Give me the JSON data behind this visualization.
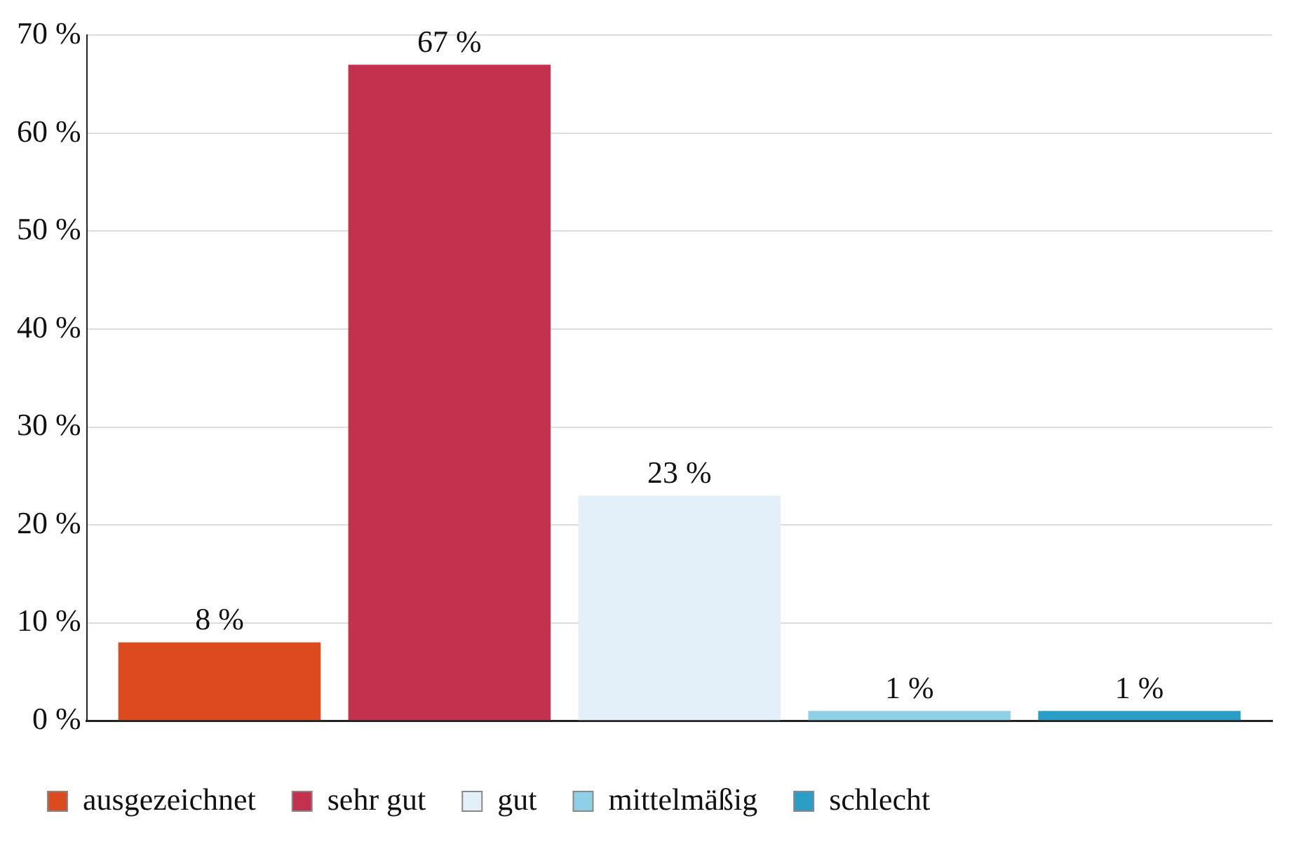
{
  "chart_data": {
    "type": "bar",
    "categories": [
      null
    ],
    "series": [
      {
        "name": "ausgezeichnet",
        "color": "#dc4a20",
        "values": [
          8
        ],
        "value_labels": [
          "8 %"
        ]
      },
      {
        "name": "sehr gut",
        "color": "#c3314f",
        "values": [
          67
        ],
        "value_labels": [
          "67 %"
        ]
      },
      {
        "name": "gut",
        "color": "#e3f0fa",
        "values": [
          23
        ],
        "value_labels": [
          "23 %"
        ]
      },
      {
        "name": "mittelmäßig",
        "color": "#8fd0e6",
        "values": [
          1
        ],
        "value_labels": [
          "1 %"
        ]
      },
      {
        "name": "schlecht",
        "color": "#2a9ec7",
        "values": [
          1
        ],
        "value_labels": [
          "1 %"
        ]
      }
    ],
    "ylim": [
      0,
      70
    ],
    "yticks": [
      {
        "value": 0,
        "label": "0 %"
      },
      {
        "value": 10,
        "label": "10 %"
      },
      {
        "value": 20,
        "label": "20 %"
      },
      {
        "value": 30,
        "label": "30 %"
      },
      {
        "value": 40,
        "label": "40 %"
      },
      {
        "value": 50,
        "label": "50 %"
      },
      {
        "value": 60,
        "label": "60 %"
      },
      {
        "value": 70,
        "label": "70 %"
      }
    ],
    "grid": "y",
    "legend": "bottom"
  }
}
